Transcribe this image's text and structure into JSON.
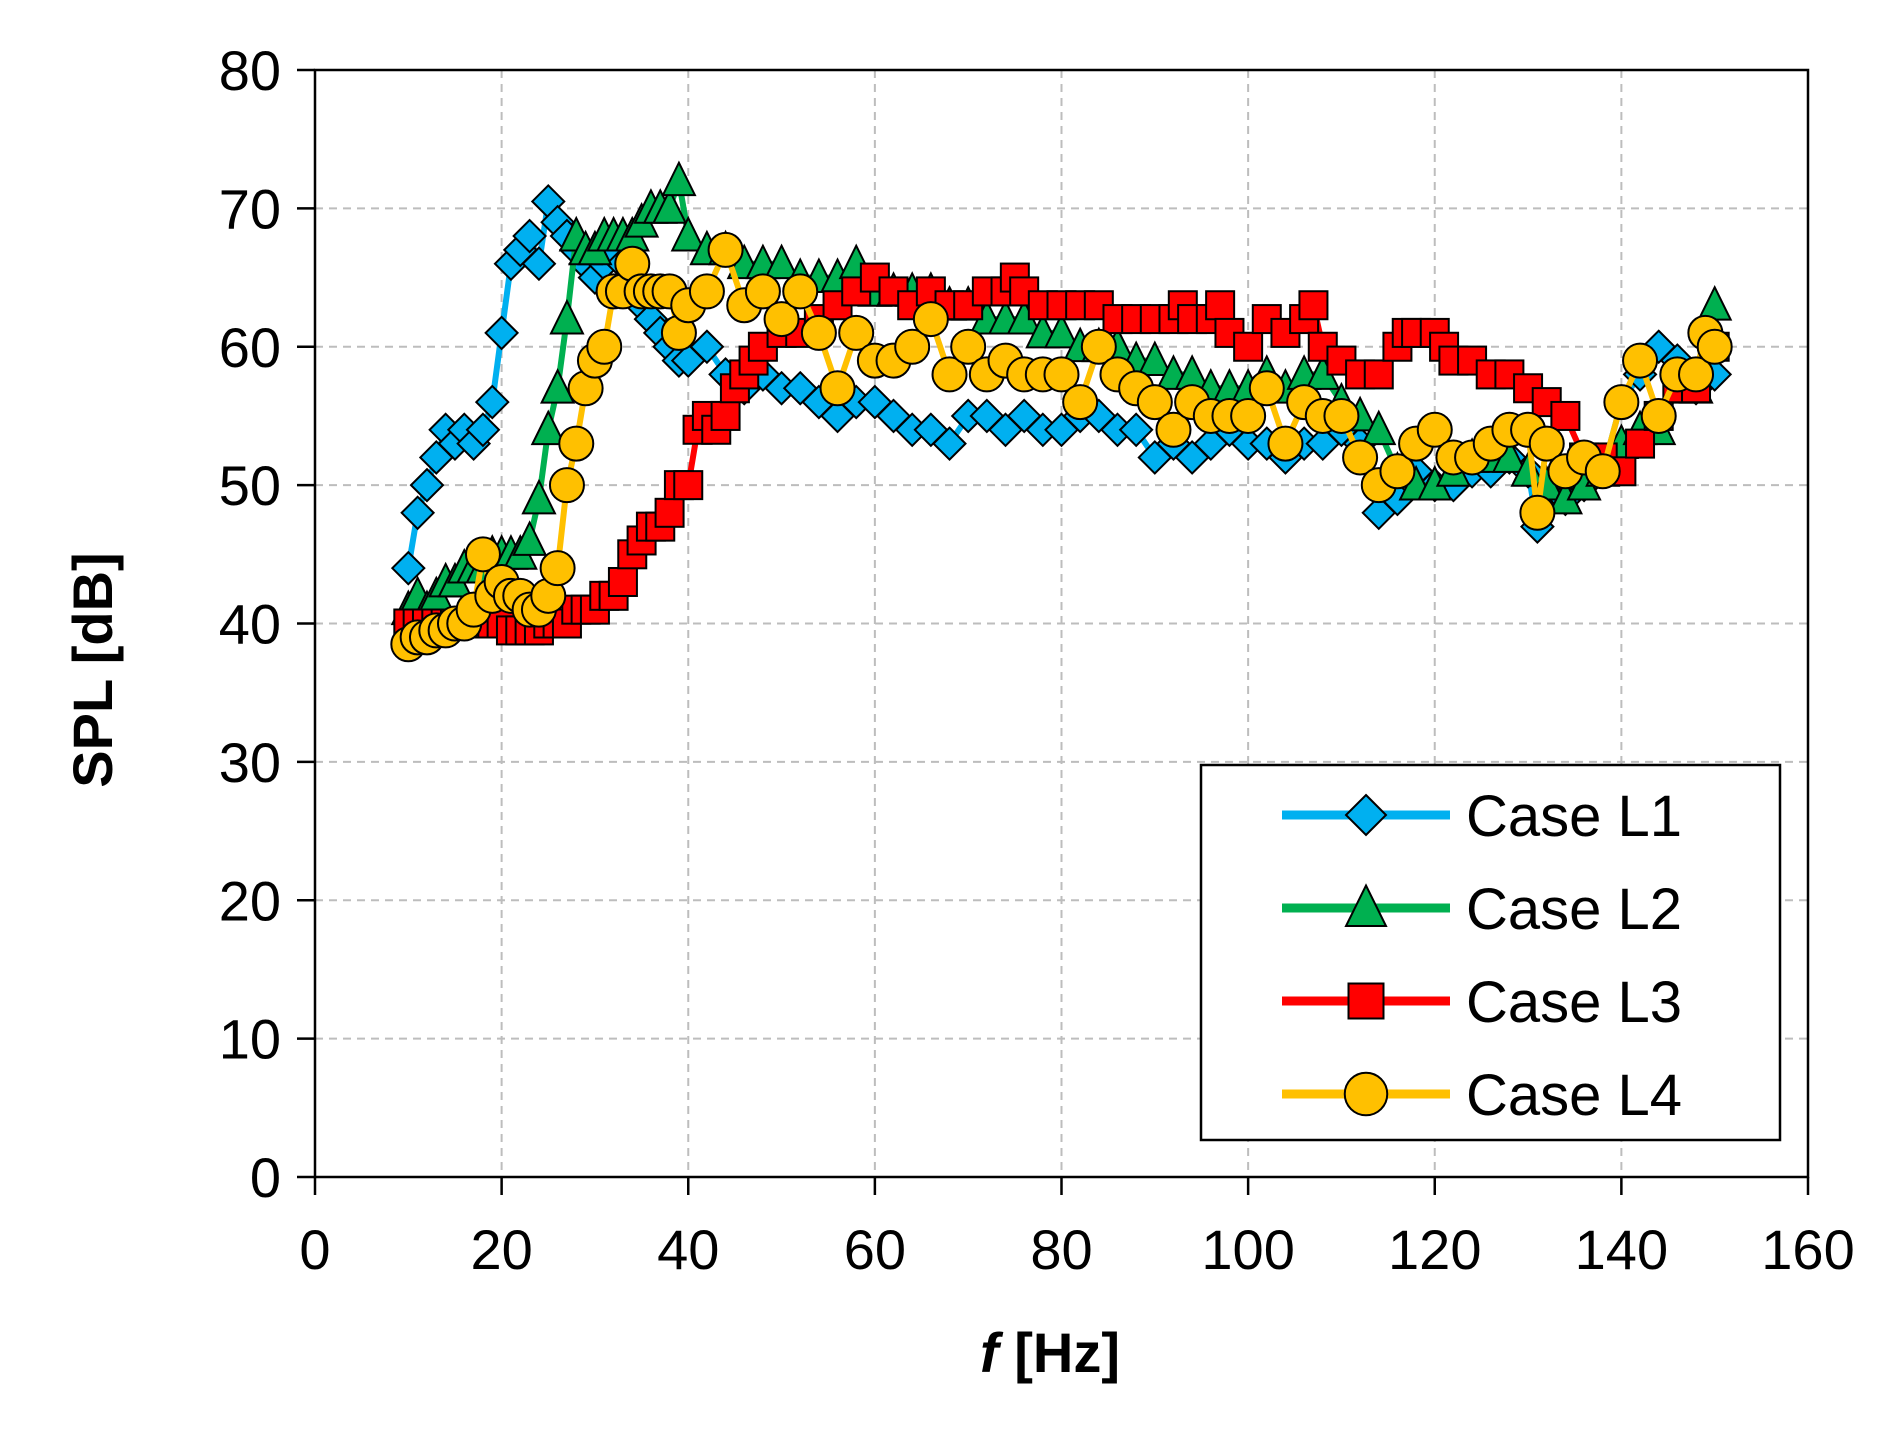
{
  "chart_data": {
    "type": "scatter",
    "title": "",
    "xlabel_italic": "f",
    "xlabel_rest": " [Hz]",
    "ylabel": "SPL [dB]",
    "xlim": [
      0,
      160
    ],
    "ylim": [
      0,
      80
    ],
    "xticks": [
      0,
      20,
      40,
      60,
      80,
      100,
      120,
      140,
      160
    ],
    "yticks": [
      0,
      10,
      20,
      30,
      40,
      50,
      60,
      70,
      80
    ],
    "grid": true,
    "legend_position": "bottom-right",
    "series": [
      {
        "name": "Case L1",
        "marker": "diamond",
        "color": "#00B0F0",
        "x": [
          10,
          11,
          12,
          13,
          14,
          15,
          16,
          17,
          18,
          19,
          20,
          21,
          22,
          23,
          24,
          25,
          26,
          27,
          28,
          29,
          30,
          31,
          32,
          33,
          34,
          35,
          36,
          37,
          38,
          39,
          40,
          42,
          44,
          46,
          48,
          50,
          52,
          54,
          56,
          58,
          60,
          62,
          64,
          66,
          68,
          70,
          72,
          74,
          76,
          78,
          80,
          82,
          84,
          86,
          88,
          90,
          92,
          94,
          96,
          98,
          100,
          102,
          104,
          106,
          108,
          110,
          112,
          114,
          116,
          118,
          120,
          122,
          124,
          126,
          128,
          130,
          131,
          132,
          134,
          136,
          138,
          140,
          142,
          144,
          146,
          148,
          150
        ],
        "y": [
          44,
          48,
          50,
          52,
          54,
          53,
          54,
          53,
          54,
          56,
          61,
          66,
          67,
          68,
          66,
          70.5,
          69,
          68,
          67,
          66,
          65,
          66,
          67,
          66,
          64,
          63,
          62,
          61,
          60,
          59,
          59,
          60,
          58,
          57,
          58,
          57,
          57,
          56,
          55,
          56,
          56,
          55,
          54,
          54,
          53,
          55,
          55,
          54,
          55,
          54,
          54,
          55,
          55,
          54,
          54,
          52,
          53,
          52,
          53,
          54,
          53,
          53,
          52,
          53,
          53,
          54,
          53,
          48,
          49,
          51,
          50,
          50,
          51,
          51,
          52,
          51,
          47,
          50,
          49,
          50,
          51,
          56,
          58,
          60,
          59,
          57,
          58
        ]
      },
      {
        "name": "Case L2",
        "marker": "triangle",
        "color": "#00B050",
        "x": [
          10,
          11,
          12,
          13,
          14,
          15,
          16,
          17,
          18,
          19,
          20,
          21,
          22,
          23,
          24,
          25,
          26,
          27,
          28,
          29,
          30,
          31,
          32,
          33,
          34,
          35,
          36,
          37,
          38,
          39,
          40,
          42,
          44,
          46,
          48,
          50,
          52,
          54,
          56,
          58,
          60,
          62,
          64,
          66,
          68,
          70,
          72,
          74,
          76,
          78,
          80,
          82,
          84,
          86,
          88,
          90,
          92,
          94,
          96,
          98,
          100,
          102,
          104,
          106,
          108,
          110,
          112,
          114,
          116,
          118,
          120,
          122,
          124,
          126,
          128,
          130,
          132,
          134,
          136,
          138,
          140,
          142,
          144,
          146,
          148,
          150
        ],
        "y": [
          41,
          42,
          41,
          42,
          43,
          43,
          44,
          44,
          44,
          45,
          45,
          45,
          45,
          46,
          49,
          54,
          57,
          62,
          68,
          67,
          67,
          68,
          68,
          68,
          68,
          69,
          70,
          70,
          70,
          72,
          68,
          67,
          67,
          66,
          66,
          66,
          65,
          65,
          65,
          66,
          64,
          64,
          64,
          64,
          63,
          63,
          62,
          62,
          62,
          61,
          61,
          60,
          60,
          60,
          59,
          59,
          58,
          58,
          57,
          57,
          57,
          58,
          57,
          58,
          58,
          56,
          55,
          54,
          51,
          50,
          50,
          51,
          52,
          52,
          52,
          51,
          50,
          49,
          50,
          51,
          53,
          54,
          54,
          57,
          57,
          63
        ]
      },
      {
        "name": "Case L3",
        "marker": "square",
        "color": "#FF0000",
        "x": [
          10,
          11,
          12,
          13,
          14,
          15,
          16,
          17,
          18,
          19,
          20,
          21,
          22,
          23,
          24,
          25,
          26,
          27,
          28,
          29,
          30,
          31,
          32,
          33,
          34,
          35,
          36,
          37,
          38,
          39,
          40,
          41,
          42,
          43,
          44,
          45,
          46,
          47,
          48,
          50,
          52,
          54,
          56,
          58,
          60,
          62,
          64,
          66,
          68,
          70,
          72,
          74,
          75,
          76,
          78,
          80,
          82,
          84,
          86,
          88,
          90,
          92,
          93,
          94,
          96,
          97,
          98,
          100,
          102,
          104,
          106,
          107,
          108,
          110,
          112,
          114,
          116,
          117,
          118,
          120,
          121,
          122,
          124,
          126,
          128,
          130,
          132,
          134,
          136,
          138,
          140,
          142,
          144,
          146,
          148,
          150
        ],
        "y": [
          40,
          40,
          40,
          40,
          40,
          40,
          40,
          40,
          40,
          40,
          40,
          39.5,
          39.5,
          39.5,
          39.5,
          40,
          40,
          40,
          41,
          41,
          41,
          42,
          42,
          43,
          45,
          46,
          47,
          47,
          48,
          50,
          50,
          54,
          55,
          54,
          55,
          57,
          58,
          59,
          60,
          61,
          61,
          62,
          63,
          64,
          65,
          64,
          63,
          64,
          63,
          63,
          64,
          64,
          65,
          64,
          63,
          63,
          63,
          63,
          62,
          62,
          62,
          62,
          63,
          62,
          62,
          63,
          61,
          60,
          62,
          61,
          62,
          63,
          60,
          59,
          58,
          58,
          60,
          61,
          61,
          61,
          60,
          59,
          59,
          58,
          58,
          57,
          56,
          55,
          52,
          52,
          51,
          53,
          55,
          57,
          57,
          60
        ]
      },
      {
        "name": "Case L4",
        "marker": "circle",
        "color": "#FFC000",
        "x": [
          10,
          11,
          12,
          13,
          14,
          15,
          16,
          17,
          18,
          19,
          20,
          21,
          22,
          23,
          24,
          25,
          26,
          27,
          28,
          29,
          30,
          31,
          32,
          33,
          34,
          35,
          36,
          37,
          38,
          39,
          40,
          42,
          44,
          46,
          48,
          50,
          52,
          54,
          56,
          58,
          60,
          62,
          64,
          66,
          68,
          70,
          72,
          74,
          76,
          78,
          80,
          82,
          84,
          86,
          88,
          90,
          92,
          94,
          96,
          98,
          100,
          102,
          104,
          106,
          108,
          110,
          112,
          114,
          116,
          118,
          120,
          122,
          124,
          126,
          128,
          130,
          131,
          132,
          134,
          136,
          138,
          140,
          142,
          144,
          146,
          148,
          149,
          150
        ],
        "y": [
          38.5,
          39,
          39,
          39.5,
          39.5,
          40,
          40,
          41,
          45,
          42,
          43,
          42,
          42,
          41,
          41,
          42,
          44,
          50,
          53,
          57,
          59,
          60,
          64,
          64,
          66,
          64,
          64,
          64,
          64,
          61,
          63,
          64,
          67,
          63,
          64,
          62,
          64,
          61,
          57,
          61,
          59,
          59,
          60,
          62,
          58,
          60,
          58,
          59,
          58,
          58,
          58,
          56,
          60,
          58,
          57,
          56,
          54,
          56,
          55,
          55,
          55,
          57,
          53,
          56,
          55,
          55,
          52,
          50,
          51,
          53,
          54,
          52,
          52,
          53,
          54,
          54,
          48,
          53,
          51,
          52,
          51,
          56,
          59,
          55,
          58,
          58,
          61,
          60
        ]
      }
    ]
  }
}
